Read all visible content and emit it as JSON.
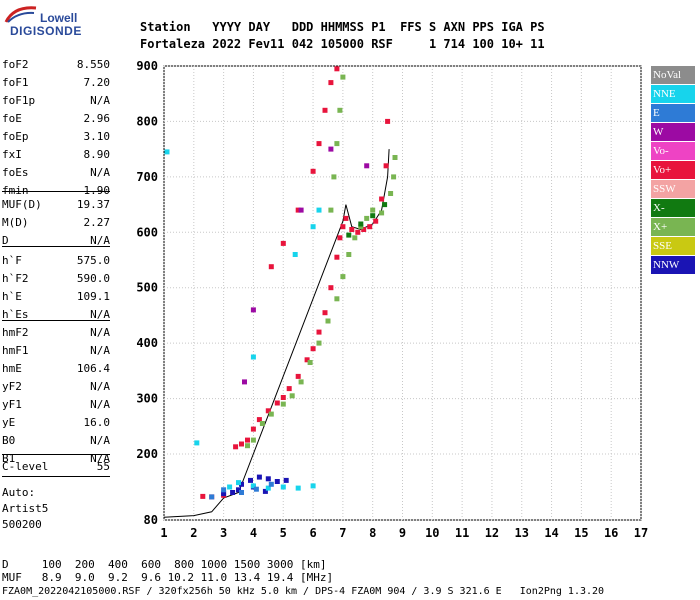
{
  "logo": {
    "line1": "Lowell",
    "line2": "DIGISONDE"
  },
  "header": {
    "labels": "Station   YYYY DAY   DDD HHMMSS P1  FFS S AXN PPS IGA PS",
    "values": "Fortaleza 2022 Fev11 042 105000 RSF     1 714 100 10+ 11"
  },
  "params": [
    {
      "name": "foF2",
      "value": "8.550"
    },
    {
      "name": "foF1",
      "value": "7.20"
    },
    {
      "name": "foF1p",
      "value": "N/A"
    },
    {
      "name": "foE",
      "value": "2.96"
    },
    {
      "name": "foEp",
      "value": "3.10"
    },
    {
      "name": "fxI",
      "value": "8.90"
    },
    {
      "name": "foEs",
      "value": "N/A"
    },
    {
      "name": "fmin",
      "value": "1.90"
    },
    {
      "name": "MUF(D)",
      "value": "19.37"
    },
    {
      "name": "M(D)",
      "value": "2.27"
    },
    {
      "name": "D",
      "value": "N/A"
    },
    {
      "name": "h`F",
      "value": "575.0"
    },
    {
      "name": "h`F2",
      "value": "590.0"
    },
    {
      "name": "h`E",
      "value": "109.1"
    },
    {
      "name": "h`Es",
      "value": "N/A"
    },
    {
      "name": "hmF2",
      "value": "N/A"
    },
    {
      "name": "hmF1",
      "value": "N/A"
    },
    {
      "name": "hmE",
      "value": "106.4"
    },
    {
      "name": "yF2",
      "value": "N/A"
    },
    {
      "name": "yF1",
      "value": "N/A"
    },
    {
      "name": "yE",
      "value": "16.0"
    },
    {
      "name": "B0",
      "value": "N/A"
    },
    {
      "name": "B1",
      "value": "N/A"
    },
    {
      "name": "C-level",
      "value": "55"
    }
  ],
  "autoscaling": {
    "line1": "Auto:",
    "line2": "Artist5",
    "line3": "500200"
  },
  "legend": [
    {
      "label": "NoVal",
      "color": "#8c8c8c"
    },
    {
      "label": "NNE",
      "color": "#17d4ec"
    },
    {
      "label": "E",
      "color": "#2e7bd6"
    },
    {
      "label": "W",
      "color": "#9c0aa3"
    },
    {
      "label": "Vo-",
      "color": "#ee43c4"
    },
    {
      "label": "Vo+",
      "color": "#e8143c"
    },
    {
      "label": "SSW",
      "color": "#f3a3a3"
    },
    {
      "label": "X-",
      "color": "#117a11"
    },
    {
      "label": "X+",
      "color": "#79b552"
    },
    {
      "label": "SSE",
      "color": "#c9c912"
    },
    {
      "label": "NNW",
      "color": "#1a14b4"
    }
  ],
  "footer": {
    "line1": "D     100  200  400  600  800 1000 1500 3000 [km]",
    "line2": "MUF   8.9  9.0  9.2  9.6 10.2 11.0 13.4 19.4 [MHz]",
    "line3": "FZA0M_2022042105000.RSF / 320fx256h 50 kHz 5.0 km / DPS-4 FZA0M 904 / 3.9 S 321.6 E   Ion2Png 1.3.20"
  },
  "chart_data": {
    "type": "scatter",
    "xlabel": "",
    "ylabel": "",
    "xlim": [
      1,
      17
    ],
    "ylim": [
      80,
      900
    ],
    "xticks": [
      1,
      2,
      3,
      4,
      5,
      6,
      7,
      8,
      9,
      10,
      11,
      12,
      13,
      14,
      15,
      16,
      17
    ],
    "yticks": [
      80,
      200,
      300,
      400,
      500,
      600,
      700,
      800,
      900
    ],
    "grid": true,
    "series": [
      {
        "name": "Vo+",
        "color": "#e8143c",
        "points": [
          [
            2.3,
            123
          ],
          [
            2.6,
            122
          ],
          [
            3.0,
            125
          ],
          [
            3.4,
            213
          ],
          [
            3.6,
            218
          ],
          [
            3.8,
            225
          ],
          [
            4.0,
            245
          ],
          [
            4.2,
            262
          ],
          [
            4.5,
            278
          ],
          [
            4.8,
            292
          ],
          [
            5.0,
            302
          ],
          [
            5.2,
            318
          ],
          [
            5.5,
            340
          ],
          [
            5.8,
            370
          ],
          [
            6.0,
            390
          ],
          [
            6.2,
            420
          ],
          [
            6.4,
            455
          ],
          [
            6.6,
            500
          ],
          [
            6.8,
            555
          ],
          [
            6.9,
            590
          ],
          [
            7.0,
            610
          ],
          [
            7.1,
            625
          ],
          [
            7.3,
            605
          ],
          [
            7.5,
            600
          ],
          [
            7.7,
            605
          ],
          [
            7.9,
            610
          ],
          [
            8.1,
            620
          ],
          [
            8.3,
            660
          ],
          [
            8.45,
            720
          ],
          [
            8.5,
            800
          ],
          [
            4.6,
            538
          ],
          [
            5.0,
            580
          ],
          [
            5.5,
            640
          ],
          [
            6.0,
            710
          ],
          [
            6.2,
            760
          ],
          [
            6.4,
            820
          ],
          [
            6.6,
            870
          ],
          [
            6.8,
            895
          ]
        ]
      },
      {
        "name": "X+",
        "color": "#79b552",
        "points": [
          [
            3.8,
            215
          ],
          [
            4.0,
            225
          ],
          [
            4.3,
            255
          ],
          [
            4.6,
            272
          ],
          [
            5.0,
            290
          ],
          [
            5.3,
            305
          ],
          [
            5.6,
            330
          ],
          [
            5.9,
            365
          ],
          [
            6.2,
            400
          ],
          [
            6.5,
            440
          ],
          [
            6.8,
            480
          ],
          [
            7.0,
            520
          ],
          [
            7.2,
            560
          ],
          [
            7.4,
            590
          ],
          [
            7.6,
            610
          ],
          [
            7.8,
            625
          ],
          [
            8.0,
            640
          ],
          [
            8.3,
            635
          ],
          [
            8.6,
            670
          ],
          [
            8.7,
            700
          ],
          [
            8.75,
            735
          ],
          [
            6.6,
            640
          ],
          [
            6.7,
            700
          ],
          [
            6.8,
            760
          ],
          [
            6.9,
            820
          ],
          [
            7.0,
            880
          ]
        ]
      },
      {
        "name": "X-",
        "color": "#117a11",
        "points": [
          [
            7.2,
            595
          ],
          [
            7.6,
            615
          ],
          [
            8.0,
            630
          ],
          [
            8.4,
            650
          ]
        ]
      },
      {
        "name": "NNW",
        "color": "#1a14b4",
        "points": [
          [
            3.0,
            128
          ],
          [
            3.3,
            130
          ],
          [
            3.6,
            145
          ],
          [
            3.9,
            152
          ],
          [
            4.2,
            158
          ],
          [
            4.5,
            155
          ],
          [
            4.8,
            150
          ],
          [
            5.1,
            152
          ],
          [
            3.5,
            135
          ],
          [
            4.0,
            140
          ],
          [
            4.4,
            132
          ]
        ]
      },
      {
        "name": "NNE",
        "color": "#17d4ec",
        "points": [
          [
            3.2,
            140
          ],
          [
            3.5,
            148
          ],
          [
            4.0,
            142
          ],
          [
            4.5,
            138
          ],
          [
            5.0,
            140
          ],
          [
            5.5,
            138
          ],
          [
            6.0,
            142
          ],
          [
            2.1,
            220
          ],
          [
            1.1,
            745
          ],
          [
            4.0,
            375
          ],
          [
            5.4,
            560
          ],
          [
            6.0,
            610
          ],
          [
            6.2,
            640
          ]
        ]
      },
      {
        "name": "E",
        "color": "#2e7bd6",
        "points": [
          [
            3.0,
            135
          ],
          [
            3.6,
            130
          ],
          [
            4.1,
            136
          ],
          [
            4.6,
            145
          ],
          [
            2.6,
            122
          ]
        ]
      },
      {
        "name": "W",
        "color": "#9c0aa3",
        "points": [
          [
            3.7,
            330
          ],
          [
            4.0,
            460
          ],
          [
            6.6,
            750
          ],
          [
            7.8,
            720
          ],
          [
            5.6,
            640
          ]
        ]
      }
    ],
    "trace": {
      "name": "",
      "color": "#000000",
      "points": [
        [
          1.0,
          85
        ],
        [
          2.0,
          88
        ],
        [
          2.6,
          95
        ],
        [
          3.0,
          120
        ],
        [
          3.5,
          130
        ],
        [
          7.0,
          620
        ],
        [
          7.1,
          650
        ],
        [
          7.3,
          610
        ],
        [
          7.6,
          605
        ],
        [
          8.0,
          615
        ],
        [
          8.3,
          640
        ],
        [
          8.5,
          700
        ],
        [
          8.55,
          750
        ]
      ]
    }
  }
}
